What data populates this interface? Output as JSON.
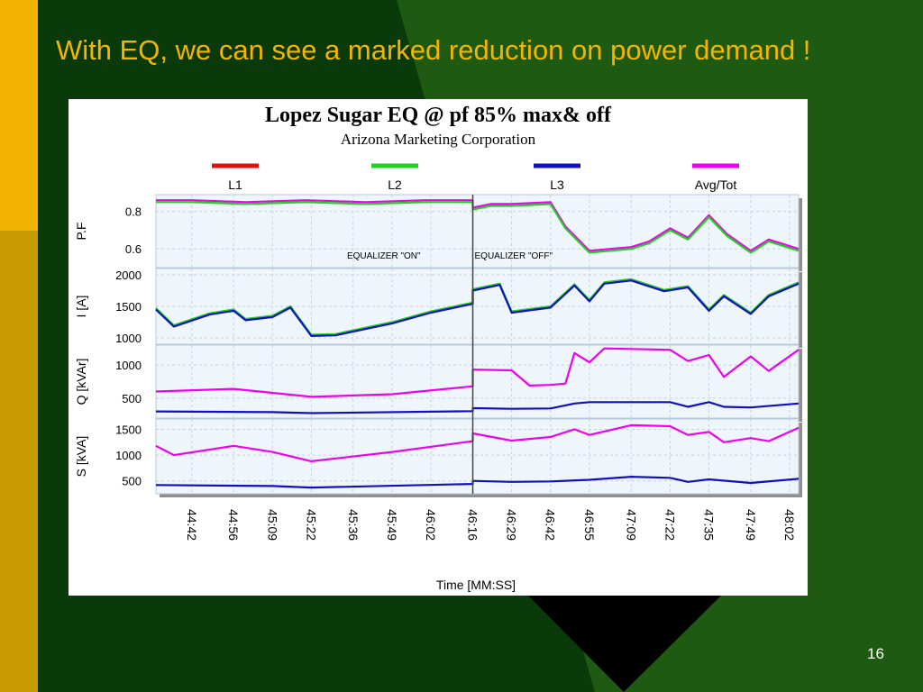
{
  "slide": {
    "title": "With EQ, we can see a marked reduction on power demand !",
    "page_number": "16"
  },
  "colors": {
    "background": "#0a3a0a",
    "triangle": "#1e5a12",
    "left_bar": "#f2b300",
    "title": "#f5b400",
    "L1": "#e01010",
    "L2": "#20d020",
    "L3": "#1010c0",
    "Avg/Tot": "#f000f0"
  },
  "chart_data": {
    "type": "line",
    "title": "Lopez Sugar EQ @ pf 85% max& off",
    "subtitle": "Arizona Marketing Corporation",
    "xlabel": "Time [MM:SS]",
    "legend": [
      "L1",
      "L2",
      "L3",
      "Avg/Tot"
    ],
    "legend_position": "top",
    "x_ticks": [
      "44:42",
      "44:56",
      "45:09",
      "45:22",
      "45:36",
      "45:49",
      "46:02",
      "46:16",
      "46:29",
      "46:42",
      "46:55",
      "47:09",
      "47:22",
      "47:35",
      "47:49",
      "48:02"
    ],
    "annotations": [
      {
        "text": "EQUALIZER \"ON\"",
        "x": "45:49"
      },
      {
        "text": "EQUALIZER \"OFF\"",
        "x": "46:16"
      }
    ],
    "divider_x": "46:16",
    "x_range": [
      "44:30",
      "48:05"
    ],
    "panels": [
      {
        "ylabel": "P.F",
        "ylim": [
          0.5,
          0.89
        ],
        "yticks": [
          0.6,
          0.8
        ],
        "series": [
          {
            "name": "Avg/Tot",
            "x": [
              "44:30",
              "44:42",
              "45:00",
              "45:20",
              "45:40",
              "46:00",
              "46:16",
              "46:16",
              "46:22",
              "46:29",
              "46:42",
              "46:47",
              "46:55",
              "47:02",
              "47:09",
              "47:15",
              "47:22",
              "47:28",
              "47:35",
              "47:41",
              "47:49",
              "47:55",
              "48:05"
            ],
            "y": [
              0.86,
              0.86,
              0.85,
              0.86,
              0.85,
              0.86,
              0.86,
              0.82,
              0.84,
              0.84,
              0.85,
              0.72,
              0.59,
              0.6,
              0.61,
              0.64,
              0.71,
              0.66,
              0.78,
              0.68,
              0.59,
              0.65,
              0.6
            ]
          },
          {
            "name": "L2",
            "x": [
              "44:30",
              "44:42",
              "45:00",
              "45:20",
              "45:40",
              "46:00",
              "46:16",
              "46:16",
              "46:22",
              "46:29",
              "46:42",
              "46:47",
              "46:55",
              "47:02",
              "47:09",
              "47:15",
              "47:22",
              "47:28",
              "47:35",
              "47:41",
              "47:49",
              "47:55",
              "48:05"
            ],
            "y": [
              0.85,
              0.85,
              0.84,
              0.85,
              0.84,
              0.85,
              0.85,
              0.81,
              0.83,
              0.83,
              0.84,
              0.71,
              0.58,
              0.59,
              0.6,
              0.63,
              0.7,
              0.65,
              0.77,
              0.67,
              0.58,
              0.64,
              0.59
            ]
          }
        ]
      },
      {
        "ylabel": "I [A]",
        "ylim": [
          900,
          2100
        ],
        "yticks": [
          1000,
          1500,
          2000
        ],
        "series": [
          {
            "name": "L2",
            "x": [
              "44:30",
              "44:36",
              "44:48",
              "44:56",
              "45:00",
              "45:09",
              "45:15",
              "45:22",
              "45:30",
              "45:49",
              "46:02",
              "46:16",
              "46:16",
              "46:25",
              "46:29",
              "46:42",
              "46:50",
              "46:55",
              "47:00",
              "47:09",
              "47:20",
              "47:28",
              "47:35",
              "47:40",
              "47:49",
              "47:55",
              "48:05"
            ],
            "y": [
              1470,
              1200,
              1390,
              1450,
              1300,
              1350,
              1500,
              1050,
              1060,
              1250,
              1420,
              1560,
              1770,
              1860,
              1420,
              1500,
              1850,
              1600,
              1880,
              1930,
              1760,
              1820,
              1450,
              1680,
              1400,
              1680,
              1880
            ]
          },
          {
            "name": "L3",
            "x": [
              "44:30",
              "44:36",
              "44:48",
              "44:56",
              "45:00",
              "45:09",
              "45:15",
              "45:22",
              "45:30",
              "45:49",
              "46:02",
              "46:16",
              "46:16",
              "46:25",
              "46:29",
              "46:42",
              "46:50",
              "46:55",
              "47:00",
              "47:09",
              "47:20",
              "47:28",
              "47:35",
              "47:40",
              "47:49",
              "47:55",
              "48:05"
            ],
            "y": [
              1450,
              1180,
              1370,
              1430,
              1280,
              1330,
              1480,
              1030,
              1040,
              1230,
              1400,
              1540,
              1750,
              1840,
              1400,
              1480,
              1830,
              1580,
              1860,
              1910,
              1740,
              1800,
              1430,
              1660,
              1380,
              1660,
              1860
            ]
          }
        ]
      },
      {
        "ylabel": "Q [kVAr]",
        "ylim": [
          200,
          1300
        ],
        "yticks": [
          500,
          1000
        ],
        "series": [
          {
            "name": "Avg/Tot",
            "x": [
              "44:30",
              "44:56",
              "45:09",
              "45:22",
              "45:49",
              "46:16",
              "46:16",
              "46:29",
              "46:35",
              "46:42",
              "46:47",
              "46:50",
              "46:55",
              "47:00",
              "47:22",
              "47:28",
              "47:35",
              "47:40",
              "47:49",
              "47:55",
              "48:05"
            ],
            "y": [
              600,
              640,
              580,
              520,
              560,
              680,
              930,
              920,
              690,
              700,
              720,
              1180,
              1040,
              1250,
              1230,
              1060,
              1150,
              820,
              1130,
              910,
              1230
            ]
          },
          {
            "name": "L3",
            "x": [
              "44:30",
              "45:09",
              "45:22",
              "46:16",
              "46:16",
              "46:29",
              "46:42",
              "46:50",
              "46:55",
              "47:22",
              "47:28",
              "47:35",
              "47:40",
              "47:49",
              "48:05"
            ],
            "y": [
              300,
              290,
              275,
              305,
              350,
              340,
              345,
              420,
              440,
              440,
              370,
              440,
              370,
              360,
              420
            ]
          }
        ]
      },
      {
        "ylabel": "S [kVA]",
        "ylim": [
          250,
          1700
        ],
        "yticks": [
          500,
          1000,
          1500
        ],
        "series": [
          {
            "name": "Avg/Tot",
            "x": [
              "44:30",
              "44:36",
              "44:56",
              "45:09",
              "45:22",
              "45:49",
              "46:16",
              "46:16",
              "46:29",
              "46:42",
              "46:50",
              "46:55",
              "47:09",
              "47:22",
              "47:28",
              "47:35",
              "47:40",
              "47:49",
              "47:55",
              "48:05"
            ],
            "y": [
              1180,
              1000,
              1180,
              1060,
              880,
              1060,
              1270,
              1420,
              1280,
              1350,
              1500,
              1390,
              1580,
              1560,
              1390,
              1450,
              1250,
              1330,
              1270,
              1530
            ]
          },
          {
            "name": "L3",
            "x": [
              "44:30",
              "45:09",
              "45:22",
              "46:16",
              "46:16",
              "46:29",
              "46:42",
              "46:55",
              "47:09",
              "47:22",
              "47:28",
              "47:35",
              "47:49",
              "48:05"
            ],
            "y": [
              420,
              400,
              370,
              440,
              500,
              480,
              490,
              520,
              580,
              560,
              480,
              530,
              460,
              540
            ]
          }
        ]
      }
    ]
  }
}
